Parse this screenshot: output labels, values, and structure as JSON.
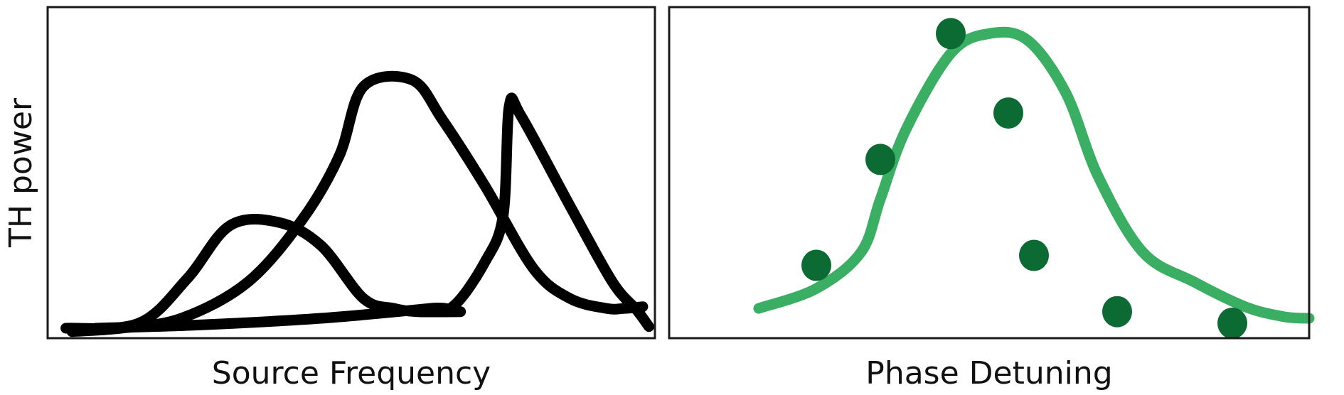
{
  "colors": {
    "frame": "#1a1a1a",
    "black_curves": "#000000",
    "fit_curve": "#3aae63",
    "data_points": "#0c6a33"
  },
  "chart_data": [
    {
      "type": "line",
      "title": "",
      "xlabel": "Source Frequency",
      "ylabel": "TH power",
      "xlim": [
        0,
        10
      ],
      "ylim": [
        0,
        10
      ],
      "grid": false,
      "ticks": false,
      "series": [
        {
          "x": [
            0.4,
            1.2,
            2.2,
            3.3,
            4.2,
            4.8,
            5.2,
            6.0,
            6.5,
            7.2,
            8.0,
            8.6,
            9.2,
            9.5,
            9.8
          ],
          "y": [
            0.2,
            0.3,
            0.6,
            1.7,
            3.6,
            5.5,
            7.6,
            7.8,
            6.6,
            4.6,
            2.1,
            1.2,
            0.9,
            0.9,
            0.95
          ]
        },
        {
          "x": [
            0.3,
            1.5,
            2.3,
            3.0,
            3.8,
            4.5,
            5.2,
            5.7,
            6.1,
            6.8
          ],
          "y": [
            0.3,
            0.45,
            1.8,
            3.4,
            3.5,
            2.8,
            1.2,
            0.9,
            0.8,
            0.8
          ]
        },
        {
          "x": [
            0.8,
            2.5,
            4.5,
            6.3,
            6.7,
            7.2,
            7.5,
            7.6,
            7.8,
            8.6,
            9.3,
            9.7,
            9.9
          ],
          "y": [
            0.3,
            0.4,
            0.6,
            0.9,
            1.0,
            2.3,
            3.7,
            7.0,
            6.7,
            4.0,
            1.7,
            0.85,
            0.35
          ]
        }
      ]
    },
    {
      "type": "scatter",
      "title": "",
      "xlabel": "Phase Detuning",
      "ylabel": "",
      "xlim": [
        0,
        10
      ],
      "ylim": [
        0,
        10
      ],
      "grid": false,
      "ticks": false,
      "fit": {
        "x": [
          1.4,
          2.3,
          3.0,
          3.3,
          3.7,
          4.4,
          5.0,
          5.6,
          6.2,
          6.7,
          7.4,
          8.2,
          9.0,
          9.6,
          10.0
        ],
        "y": [
          0.9,
          1.5,
          2.6,
          4.2,
          6.3,
          8.6,
          9.2,
          9.0,
          7.4,
          4.9,
          2.6,
          1.7,
          0.95,
          0.65,
          0.6
        ]
      },
      "points": {
        "x": [
          2.3,
          3.3,
          4.4,
          5.3,
          5.7,
          7.0,
          8.8
        ],
        "y": [
          2.2,
          5.4,
          9.2,
          6.8,
          2.5,
          0.8,
          0.45
        ]
      }
    }
  ]
}
